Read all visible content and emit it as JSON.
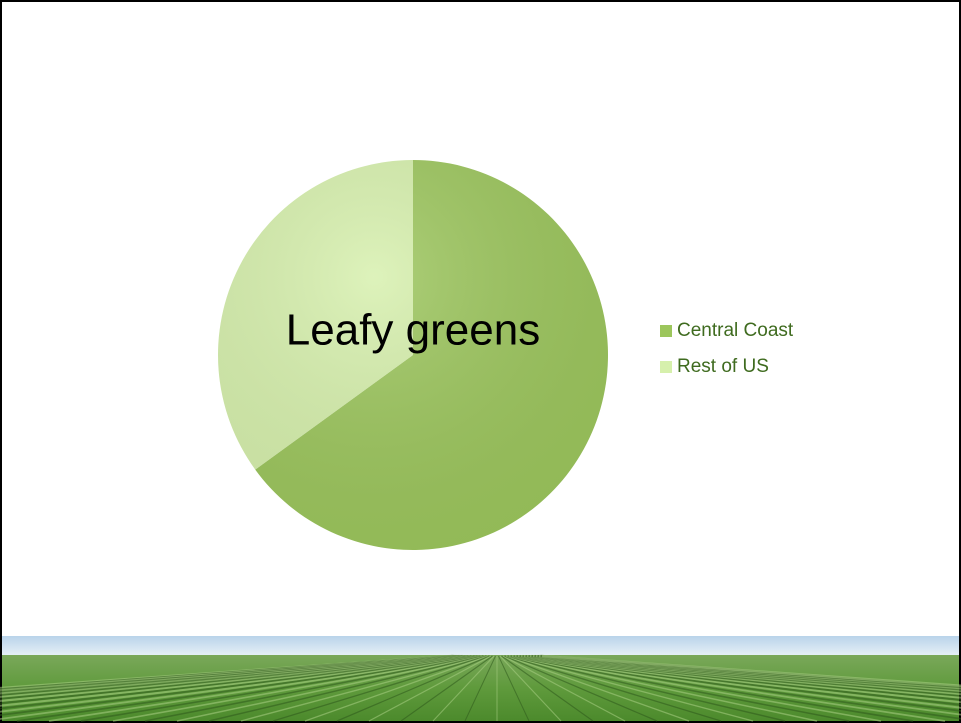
{
  "chart_data": {
    "type": "pie",
    "title": "Leafy greens",
    "categories": [
      "Central Coast",
      "Rest of US"
    ],
    "values": [
      65,
      35
    ],
    "colors": [
      "#9cc65c",
      "#d6f0ac"
    ],
    "legend": "right"
  }
}
